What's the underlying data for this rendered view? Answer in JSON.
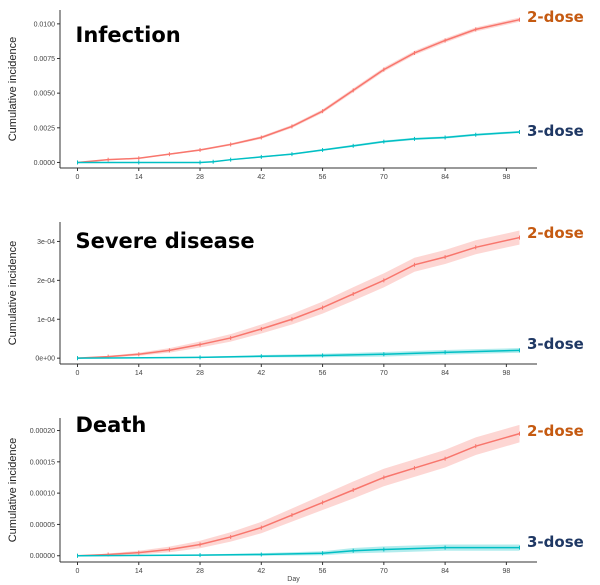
{
  "colors": {
    "two_dose": "#f8766d",
    "three_dose": "#00bfc4",
    "two_dose_label": "#c55a11",
    "three_dose_label": "#1f3864"
  },
  "shared": {
    "ylabel": "Cumulative incidence",
    "xlabel": "Day",
    "xticks": [
      0,
      14,
      28,
      42,
      56,
      70,
      84,
      98
    ],
    "xlim": [
      -4,
      105
    ],
    "series_labels": [
      "2-dose",
      "3-dose"
    ]
  },
  "chart_data": [
    {
      "type": "line",
      "title": "Infection",
      "ylim": [
        -0.0004,
        0.011
      ],
      "yticks": [
        0,
        0.0025,
        0.005,
        0.0075,
        0.01
      ],
      "ytick_labels": [
        "0.0000",
        "0.0025",
        "0.0050",
        "0.0075",
        "0.0100"
      ],
      "series": [
        {
          "name": "2-dose",
          "x": [
            0,
            7,
            14,
            21,
            28,
            35,
            42,
            49,
            56,
            63,
            70,
            77,
            84,
            91,
            101
          ],
          "y": [
            0,
            0.0002,
            0.0003,
            0.0006,
            0.0009,
            0.0013,
            0.0018,
            0.0026,
            0.0037,
            0.0052,
            0.0067,
            0.0079,
            0.0088,
            0.0096,
            0.0103
          ],
          "ci": 0.00015
        },
        {
          "name": "3-dose",
          "x": [
            0,
            14,
            28,
            31,
            35,
            42,
            49,
            56,
            63,
            70,
            77,
            84,
            91,
            101
          ],
          "y": [
            0,
            0,
            0,
            5e-05,
            0.0002,
            0.0004,
            0.0006,
            0.0009,
            0.0012,
            0.0015,
            0.0017,
            0.0018,
            0.002,
            0.0022
          ],
          "ci": 8e-05
        }
      ]
    },
    {
      "type": "line",
      "title": "Severe disease",
      "ylim": [
        -1.5e-05,
        0.00035
      ],
      "yticks": [
        0,
        0.0001,
        0.0002,
        0.0003
      ],
      "ytick_labels": [
        "0e+00",
        "1e-04",
        "2e-04",
        "3e-04"
      ],
      "series": [
        {
          "name": "2-dose",
          "x": [
            0,
            7,
            14,
            21,
            28,
            35,
            42,
            49,
            56,
            63,
            70,
            77,
            84,
            91,
            101
          ],
          "y": [
            0,
            4e-06,
            1e-05,
            2e-05,
            3.5e-05,
            5.2e-05,
            7.5e-05,
            0.0001,
            0.00013,
            0.000165,
            0.0002,
            0.00024,
            0.00026,
            0.000285,
            0.00031
          ],
          "ci": 1.8e-05
        },
        {
          "name": "3-dose",
          "x": [
            0,
            28,
            42,
            56,
            70,
            84,
            101
          ],
          "y": [
            0,
            2e-06,
            5e-06,
            7e-06,
            1e-05,
            1.5e-05,
            2e-05
          ],
          "ci": 6e-06
        }
      ]
    },
    {
      "type": "line",
      "title": "Death",
      "ylim": [
        -1e-05,
        0.00022
      ],
      "yticks": [
        0,
        5e-05,
        0.0001,
        0.00015,
        0.0002
      ],
      "ytick_labels": [
        "0.00000",
        "0.00005",
        "0.00010",
        "0.00015",
        "0.00020"
      ],
      "series": [
        {
          "name": "2-dose",
          "x": [
            0,
            7,
            14,
            21,
            28,
            35,
            42,
            49,
            56,
            63,
            70,
            77,
            84,
            91,
            101
          ],
          "y": [
            0,
            2e-06,
            5e-06,
            1e-05,
            1.8e-05,
            3e-05,
            4.5e-05,
            6.5e-05,
            8.5e-05,
            0.000105,
            0.000125,
            0.00014,
            0.000155,
            0.000175,
            0.000195
          ],
          "ci": 1.4e-05
        },
        {
          "name": "3-dose",
          "x": [
            0,
            28,
            42,
            56,
            63,
            70,
            84,
            101
          ],
          "y": [
            0,
            1e-06,
            2e-06,
            4e-06,
            8e-06,
            1e-05,
            1.3e-05,
            1.3e-05
          ],
          "ci": 5e-06
        }
      ]
    }
  ]
}
